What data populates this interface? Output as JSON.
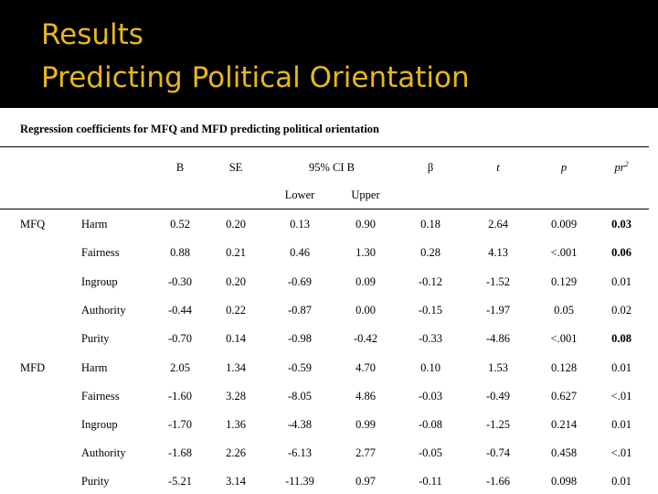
{
  "slide": {
    "title_line1": "Results",
    "title_line2": "Predicting Political Orientation",
    "title_color": "#e6b818"
  },
  "table": {
    "caption": "Regression coefficients for MFQ and MFD predicting political orientation",
    "headers": {
      "B": "B",
      "SE": "SE",
      "CI": "95% CI B",
      "lower": "Lower",
      "upper": "Upper",
      "beta": "β",
      "t": "t",
      "p": "p",
      "pr2_base": "pr",
      "pr2_sup": "2"
    },
    "rows": [
      {
        "group": "MFQ",
        "predictor": "Harm",
        "B": "0.52",
        "SE": "0.20",
        "lower": "0.13",
        "upper": "0.90",
        "beta": "0.18",
        "t": "2.64",
        "p": "0.009",
        "pr2": "0.03",
        "pr2_bold": true
      },
      {
        "group": "",
        "predictor": "Fairness",
        "B": "0.88",
        "SE": "0.21",
        "lower": "0.46",
        "upper": "1.30",
        "beta": "0.28",
        "t": "4.13",
        "p": "<.001",
        "pr2": "0.06",
        "pr2_bold": true
      },
      {
        "group": "",
        "predictor": "Ingroup",
        "B": "-0.30",
        "SE": "0.20",
        "lower": "-0.69",
        "upper": "0.09",
        "beta": "-0.12",
        "t": "-1.52",
        "p": "0.129",
        "pr2": "0.01",
        "pr2_bold": false
      },
      {
        "group": "",
        "predictor": "Authority",
        "B": "-0.44",
        "SE": "0.22",
        "lower": "-0.87",
        "upper": "0.00",
        "beta": "-0.15",
        "t": "-1.97",
        "p": "0.05",
        "pr2": "0.02",
        "pr2_bold": false
      },
      {
        "group": "",
        "predictor": "Purity",
        "B": "-0.70",
        "SE": "0.14",
        "lower": "-0.98",
        "upper": "-0.42",
        "beta": "-0.33",
        "t": "-4.86",
        "p": "<.001",
        "pr2": "0.08",
        "pr2_bold": true
      },
      {
        "group": "MFD",
        "predictor": "Harm",
        "B": "2.05",
        "SE": "1.34",
        "lower": "-0.59",
        "upper": "4.70",
        "beta": "0.10",
        "t": "1.53",
        "p": "0.128",
        "pr2": "0.01",
        "pr2_bold": false
      },
      {
        "group": "",
        "predictor": "Fairness",
        "B": "-1.60",
        "SE": "3.28",
        "lower": "-8.05",
        "upper": "4.86",
        "beta": "-0.03",
        "t": "-0.49",
        "p": "0.627",
        "pr2": "<.01",
        "pr2_bold": false
      },
      {
        "group": "",
        "predictor": "Ingroup",
        "B": "-1.70",
        "SE": "1.36",
        "lower": "-4.38",
        "upper": "0.99",
        "beta": "-0.08",
        "t": "-1.25",
        "p": "0.214",
        "pr2": "0.01",
        "pr2_bold": false
      },
      {
        "group": "",
        "predictor": "Authority",
        "B": "-1.68",
        "SE": "2.26",
        "lower": "-6.13",
        "upper": "2.77",
        "beta": "-0.05",
        "t": "-0.74",
        "p": "0.458",
        "pr2": "<.01",
        "pr2_bold": false
      },
      {
        "group": "",
        "predictor": "Purity",
        "B": "-5.21",
        "SE": "3.14",
        "lower": "-11.39",
        "upper": "0.97",
        "beta": "-0.11",
        "t": "-1.66",
        "p": "0.098",
        "pr2": "0.01",
        "pr2_bold": false
      }
    ]
  }
}
